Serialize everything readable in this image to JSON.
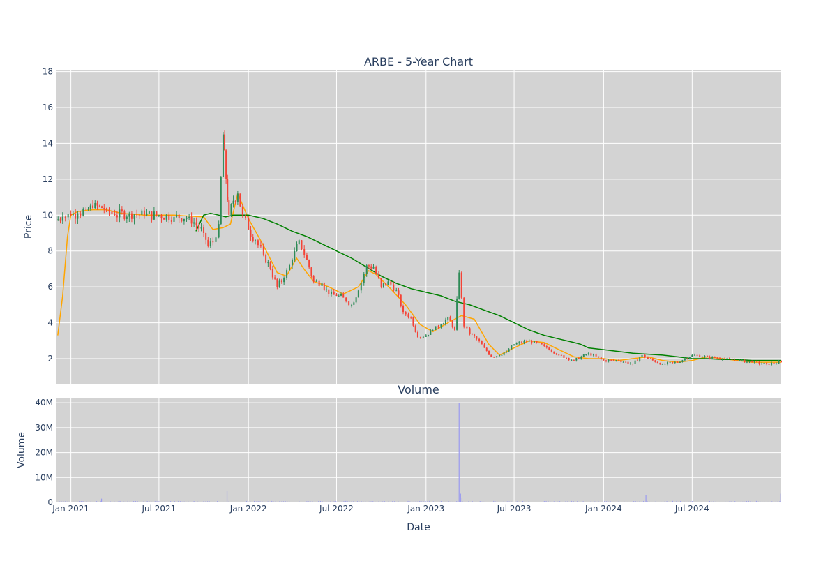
{
  "chart_data": [
    {
      "type": "candlestick",
      "title": "ARBE - 5-Year Chart",
      "ylabel": "Price",
      "ylim": [
        0.6,
        18.1
      ],
      "yticks": [
        2,
        4,
        6,
        8,
        10,
        12,
        14,
        16,
        18
      ],
      "xlim": [
        "2020-12-01",
        "2024-12-31"
      ],
      "grid": true,
      "up_color": "#2e8b57",
      "down_color": "#f44336",
      "plot_bg": "#d3d3d3",
      "x": [
        "2020-12-01",
        "2020-12-15",
        "2021-01-01",
        "2021-01-15",
        "2021-02-01",
        "2021-02-15",
        "2021-03-01",
        "2021-03-15",
        "2021-04-01",
        "2021-05-01",
        "2021-06-01",
        "2021-07-01",
        "2021-08-01",
        "2021-09-01",
        "2021-10-01",
        "2021-10-10",
        "2021-10-20",
        "2021-11-01",
        "2021-11-10",
        "2021-11-16",
        "2021-11-22",
        "2021-12-01",
        "2021-12-10",
        "2021-12-20",
        "2022-01-01",
        "2022-01-15",
        "2022-02-01",
        "2022-02-15",
        "2022-03-01",
        "2022-03-15",
        "2022-04-01",
        "2022-04-15",
        "2022-05-01",
        "2022-05-15",
        "2022-06-01",
        "2022-06-15",
        "2022-07-01",
        "2022-07-15",
        "2022-08-01",
        "2022-08-15",
        "2022-09-01",
        "2022-09-15",
        "2022-10-01",
        "2022-10-15",
        "2022-11-01",
        "2022-11-15",
        "2022-12-01",
        "2022-12-15",
        "2023-01-01",
        "2023-01-15",
        "2023-02-01",
        "2023-02-15",
        "2023-03-01",
        "2023-03-10",
        "2023-03-20",
        "2023-04-01",
        "2023-04-15",
        "2023-05-01",
        "2023-05-15",
        "2023-06-01",
        "2023-06-15",
        "2023-07-01",
        "2023-08-01",
        "2023-09-01",
        "2023-10-01",
        "2023-11-01",
        "2023-12-01",
        "2024-01-01",
        "2024-02-01",
        "2024-03-01",
        "2024-03-20",
        "2024-04-01",
        "2024-05-01",
        "2024-06-01",
        "2024-07-01",
        "2024-08-01",
        "2024-09-01",
        "2024-10-01",
        "2024-11-01",
        "2024-12-01",
        "2024-12-31"
      ],
      "close": [
        9.7,
        9.9,
        10.0,
        10.1,
        10.3,
        10.4,
        10.5,
        10.3,
        10.0,
        10.1,
        10.0,
        10.0,
        9.9,
        9.9,
        9.0,
        8.3,
        8.5,
        9.5,
        14.5,
        12.0,
        10.0,
        10.8,
        11.2,
        10.0,
        9.2,
        8.6,
        7.8,
        7.0,
        6.0,
        6.5,
        7.5,
        8.6,
        7.5,
        6.3,
        6.2,
        5.6,
        5.5,
        5.4,
        5.0,
        5.8,
        7.2,
        7.1,
        6.0,
        6.3,
        5.8,
        4.6,
        4.3,
        3.2,
        3.3,
        3.6,
        3.9,
        4.3,
        3.6,
        6.8,
        3.8,
        3.4,
        3.1,
        2.6,
        2.1,
        2.2,
        2.4,
        2.8,
        3.0,
        2.7,
        2.2,
        1.9,
        2.3,
        1.9,
        1.9,
        1.7,
        2.2,
        2.0,
        1.7,
        1.8,
        2.2,
        2.1,
        2.0,
        1.9,
        1.8,
        1.7,
        1.8
      ],
      "volume_series": {
        "name": "Volume",
        "ylabel": "Volume",
        "ylim": [
          0,
          42000000
        ],
        "tick_labels": [
          "0",
          "10M",
          "20M",
          "30M",
          "40M"
        ],
        "tick_values": [
          0,
          10000000,
          20000000,
          30000000,
          40000000
        ],
        "x": [
          "2021-03-05",
          "2021-11-18",
          "2023-03-10",
          "2023-03-13",
          "2023-03-16",
          "2024-03-28",
          "2024-12-30"
        ],
        "values": [
          1500000,
          4500000,
          40000000,
          3500000,
          2000000,
          3000000,
          3500000
        ],
        "color": "#9b9bf0"
      },
      "overlays": [
        {
          "name": "",
          "color": "#ffa500",
          "x": [
            "2020-12-05",
            "2020-12-15",
            "2020-12-25",
            "2021-01-01",
            "2021-01-15",
            "2021-02-15",
            "2021-03-15",
            "2021-04-15",
            "2021-06-01",
            "2021-08-01",
            "2021-10-01",
            "2021-10-20",
            "2021-11-10",
            "2021-11-25",
            "2021-12-10",
            "2022-01-01",
            "2022-02-01",
            "2022-03-01",
            "2022-03-20",
            "2022-04-10",
            "2022-04-25",
            "2022-05-15",
            "2022-06-15",
            "2022-07-15",
            "2022-08-15",
            "2022-09-05",
            "2022-09-20",
            "2022-10-20",
            "2022-11-20",
            "2022-12-20",
            "2023-01-15",
            "2023-02-15",
            "2023-03-15",
            "2023-04-10",
            "2023-05-10",
            "2023-06-01",
            "2023-07-01",
            "2023-08-01",
            "2023-09-01",
            "2023-10-01",
            "2023-11-01",
            "2023-12-01",
            "2024-01-01",
            "2024-02-01",
            "2024-03-01",
            "2024-04-01",
            "2024-05-01",
            "2024-06-01",
            "2024-07-01",
            "2024-08-01",
            "2024-09-01",
            "2024-10-01",
            "2024-11-01",
            "2024-12-01",
            "2024-12-31"
          ],
          "y": [
            3.3,
            5.5,
            8.8,
            10.0,
            10.2,
            10.3,
            10.3,
            10.1,
            10.0,
            10.0,
            9.9,
            9.2,
            9.3,
            9.5,
            11.2,
            9.8,
            8.3,
            6.8,
            6.6,
            7.6,
            7.0,
            6.3,
            6.0,
            5.6,
            6.0,
            6.9,
            6.7,
            5.9,
            5.0,
            3.9,
            3.5,
            4.0,
            4.4,
            4.2,
            2.8,
            2.2,
            2.6,
            3.0,
            2.9,
            2.5,
            2.1,
            2.0,
            2.0,
            1.9,
            2.0,
            2.1,
            1.9,
            1.8,
            1.9,
            2.1,
            2.0,
            1.9,
            1.8,
            1.8,
            1.8
          ]
        },
        {
          "name": "",
          "color": "#008000",
          "x": [
            "2021-09-15",
            "2021-10-01",
            "2021-10-15",
            "2021-11-01",
            "2021-11-15",
            "2021-12-01",
            "2022-01-01",
            "2022-02-01",
            "2022-03-01",
            "2022-04-01",
            "2022-05-01",
            "2022-06-01",
            "2022-07-01",
            "2022-08-01",
            "2022-09-01",
            "2022-10-01",
            "2022-11-01",
            "2022-12-01",
            "2023-01-01",
            "2023-02-01",
            "2023-03-01",
            "2023-04-01",
            "2023-05-01",
            "2023-06-01",
            "2023-07-01",
            "2023-08-01",
            "2023-09-01",
            "2023-10-01",
            "2023-11-01",
            "2023-11-15",
            "2023-12-01",
            "2024-01-01",
            "2024-02-01",
            "2024-03-01",
            "2024-04-01",
            "2024-05-01",
            "2024-06-01",
            "2024-07-01",
            "2024-08-01",
            "2024-09-01",
            "2024-10-01",
            "2024-11-01",
            "2024-12-01",
            "2024-12-31"
          ],
          "y": [
            9.1,
            10.0,
            10.1,
            10.0,
            9.9,
            10.0,
            10.0,
            9.8,
            9.5,
            9.1,
            8.8,
            8.4,
            8.0,
            7.6,
            7.1,
            6.6,
            6.2,
            5.9,
            5.7,
            5.5,
            5.2,
            5.0,
            4.7,
            4.4,
            4.0,
            3.6,
            3.3,
            3.1,
            2.9,
            2.8,
            2.6,
            2.5,
            2.4,
            2.3,
            2.25,
            2.2,
            2.1,
            2.0,
            2.0,
            1.95,
            1.95,
            1.9,
            1.9,
            1.9
          ]
        }
      ]
    }
  ],
  "labels": {
    "volume_title": "Volume",
    "xlabel": "Date",
    "x_ticks": [
      "Jan 2021",
      "Jul 2021",
      "Jan 2022",
      "Jul 2022",
      "Jan 2023",
      "Jul 2023",
      "Jan 2024",
      "Jul 2024"
    ],
    "x_tick_dates": [
      "2021-01-01",
      "2021-07-01",
      "2022-01-01",
      "2022-07-01",
      "2023-01-01",
      "2023-07-01",
      "2024-01-01",
      "2024-07-01"
    ]
  }
}
